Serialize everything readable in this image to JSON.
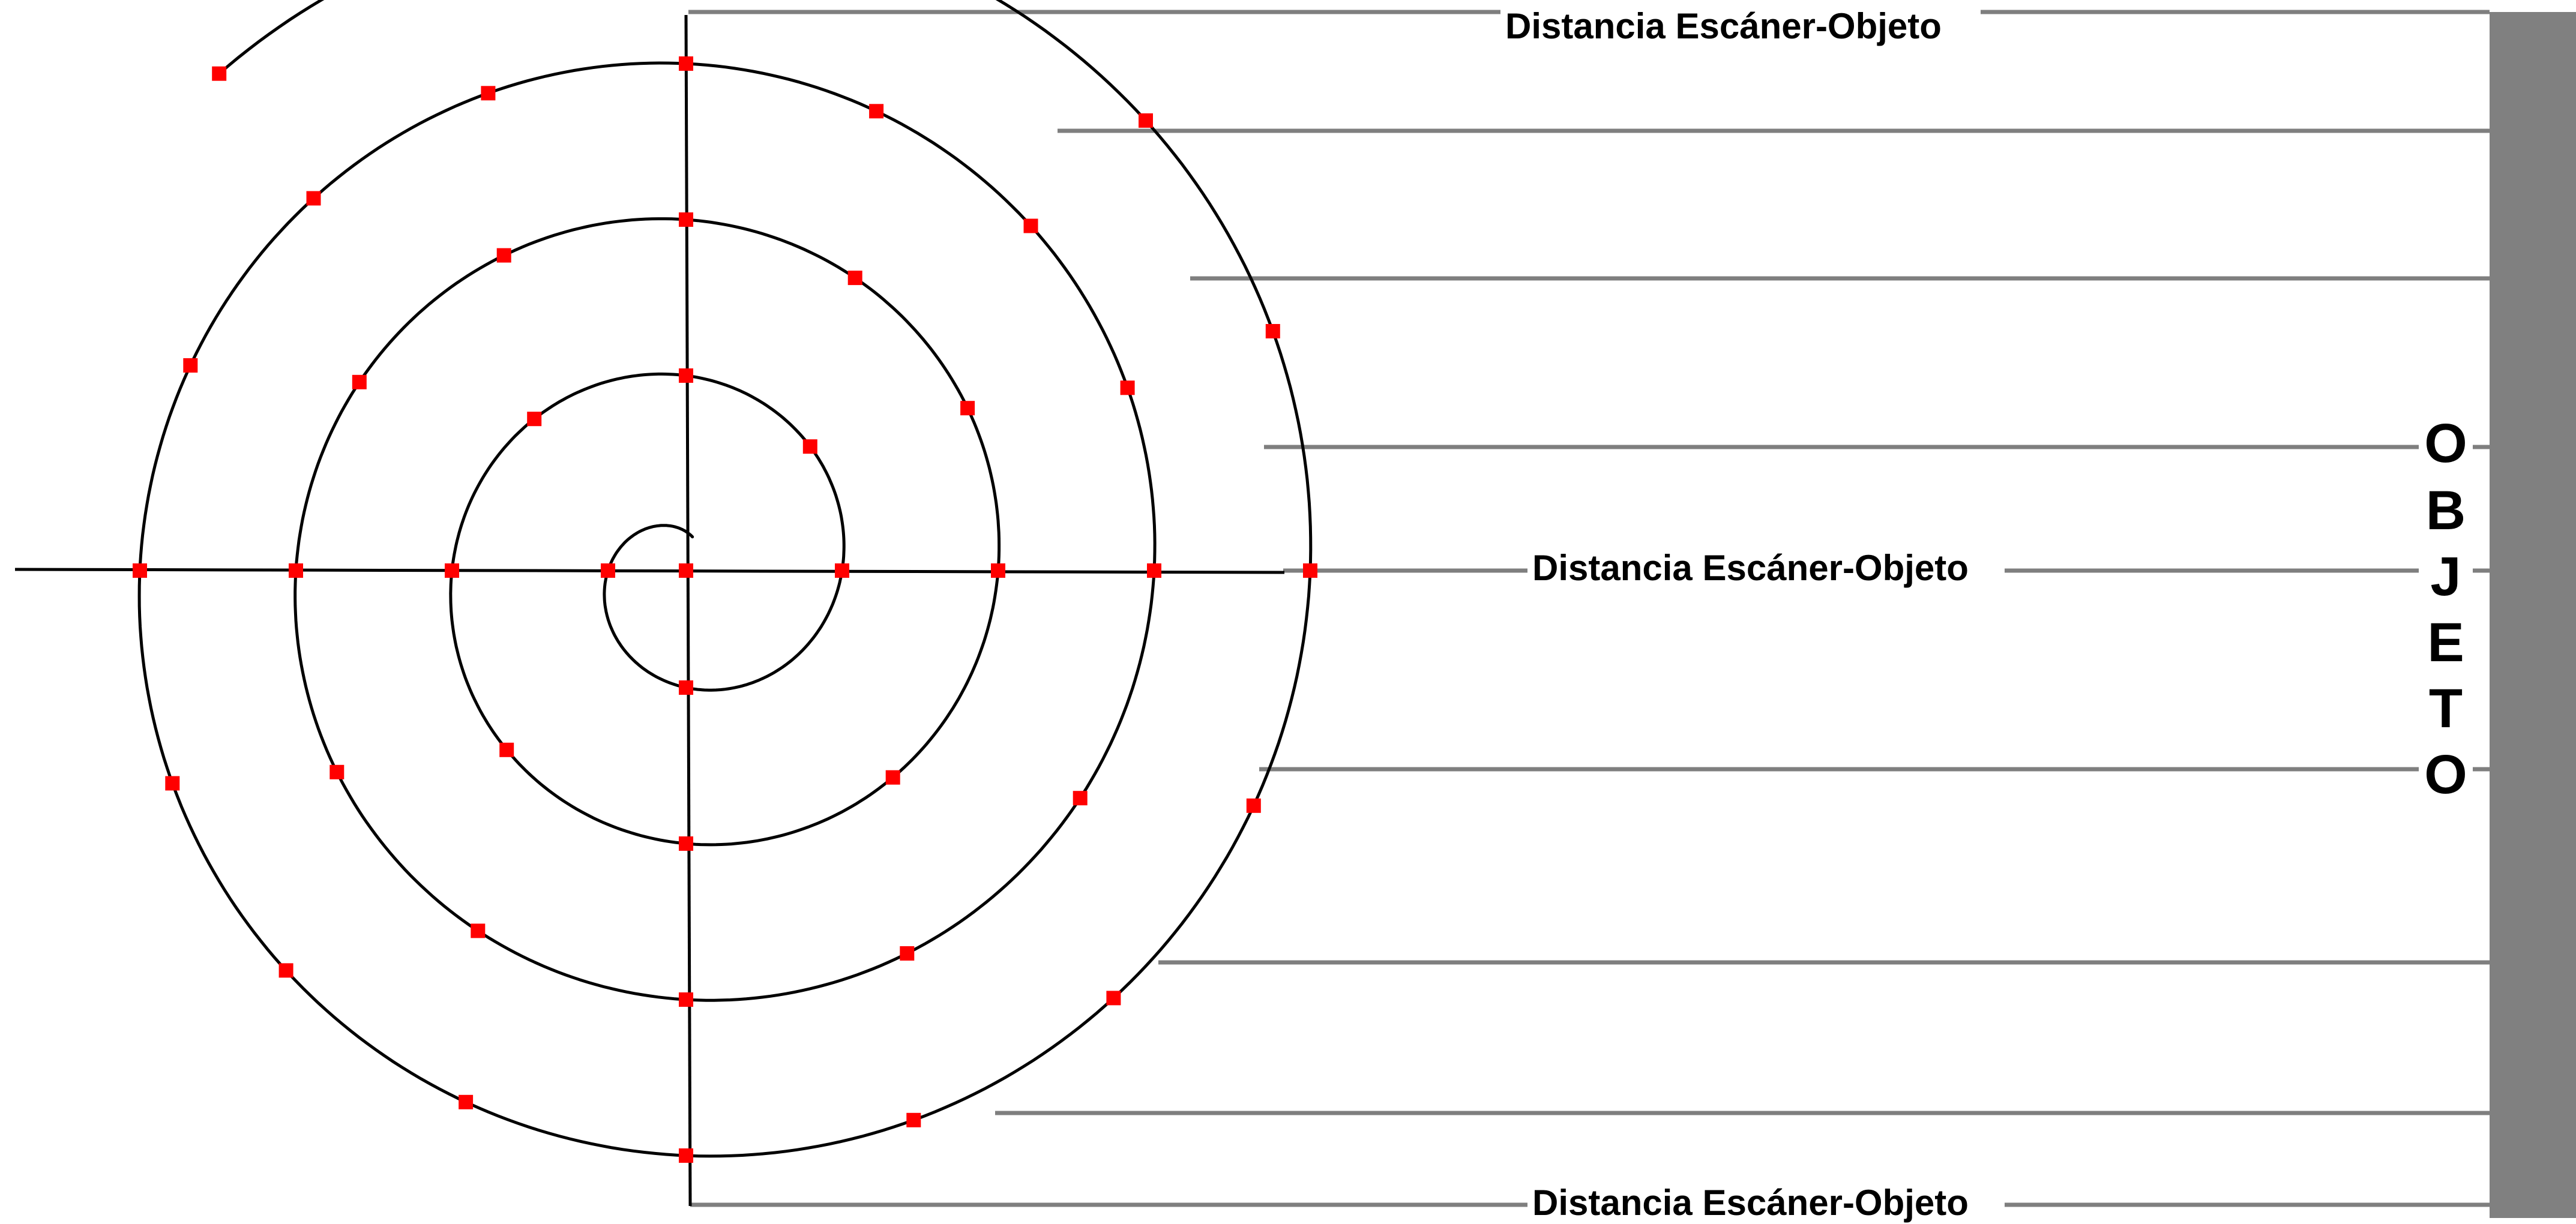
{
  "labels": {
    "distance_top": "Distancia Escáner-Objeto",
    "distance_middle": "Distancia Escáner-Objeto",
    "distance_bottom": "Distancia Escáner-Objeto",
    "object_letters": [
      "O",
      "B",
      "J",
      "E",
      "T",
      "O"
    ]
  },
  "colors": {
    "spiral": "#000000",
    "sample_point": "#ff0000",
    "distance_line": "#7f7f7f",
    "object_bar": "#808080",
    "background": "#ffffff"
  }
}
